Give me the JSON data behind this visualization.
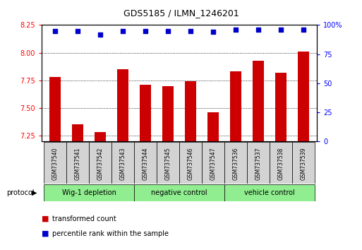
{
  "title": "GDS5185 / ILMN_1246201",
  "samples": [
    "GSM737540",
    "GSM737541",
    "GSM737542",
    "GSM737543",
    "GSM737544",
    "GSM737545",
    "GSM737546",
    "GSM737547",
    "GSM737536",
    "GSM737537",
    "GSM737538",
    "GSM737539"
  ],
  "transformed_counts": [
    7.78,
    7.35,
    7.28,
    7.85,
    7.71,
    7.7,
    7.74,
    7.46,
    7.83,
    7.93,
    7.82,
    8.01
  ],
  "percentile_ranks": [
    95,
    95,
    92,
    95,
    95,
    95,
    95,
    94,
    96,
    96,
    96,
    96
  ],
  "ylim_left": [
    7.2,
    8.25
  ],
  "ylim_right": [
    0,
    100
  ],
  "yticks_left": [
    7.25,
    7.5,
    7.75,
    8.0,
    8.25
  ],
  "yticks_right": [
    0,
    25,
    50,
    75,
    100
  ],
  "bar_color": "#cc0000",
  "dot_color": "#0000cc",
  "group_labels": [
    "Wig-1 depletion",
    "negative control",
    "vehicle control"
  ],
  "group_ranges": [
    [
      0,
      3
    ],
    [
      4,
      7
    ],
    [
      8,
      11
    ]
  ],
  "group_color": "#90ee90",
  "sample_box_color": "#d3d3d3",
  "legend_bar_label": "transformed count",
  "legend_dot_label": "percentile rank within the sample",
  "protocol_label": "protocol"
}
